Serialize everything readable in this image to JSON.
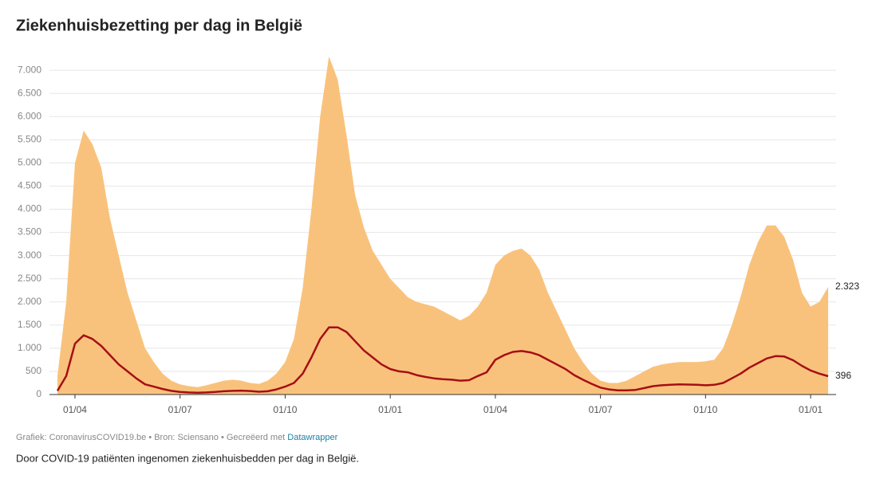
{
  "chart_data": {
    "type": "area",
    "title": "Ziekenhuisbezetting per dag in België",
    "footer": {
      "source": "Grafiek: CoronavirusCOVID19.be • Bron: Sciensano • Gecreëerd met ",
      "link": "Datawrapper"
    },
    "description": "Door COVID-19 patiënten ingenomen ziekenhuisbedden per dag in België.",
    "categories": [
      null,
      null,
      "01/04",
      null,
      null,
      null,
      null,
      null,
      null,
      null,
      null,
      null,
      null,
      null,
      "01/07",
      null,
      null,
      null,
      null,
      null,
      null,
      null,
      null,
      null,
      null,
      null,
      "01/10",
      null,
      null,
      null,
      null,
      null,
      null,
      null,
      null,
      null,
      null,
      null,
      "01/01",
      null,
      null,
      null,
      null,
      null,
      null,
      null,
      null,
      null,
      null,
      null,
      "01/04",
      null,
      null,
      null,
      null,
      null,
      null,
      null,
      null,
      null,
      null,
      null,
      "01/07",
      null,
      null,
      null,
      null,
      null,
      null,
      null,
      null,
      null,
      null,
      null,
      "01/10",
      null,
      null,
      null,
      null,
      null,
      null,
      null,
      null,
      null,
      null,
      null,
      "01/01",
      null,
      null
    ],
    "series": [
      {
        "color": "#f9c27c",
        "values": [
          400,
          2000,
          5000,
          5700,
          5400,
          4900,
          3800,
          3000,
          2200,
          1600,
          1000,
          700,
          450,
          300,
          220,
          180,
          160,
          200,
          250,
          300,
          320,
          300,
          250,
          230,
          300,
          450,
          700,
          1200,
          2300,
          4000,
          6000,
          7300,
          6800,
          5600,
          4300,
          3600,
          3100,
          2800,
          2500,
          2300,
          2100,
          2000,
          1950,
          1900,
          1800,
          1700,
          1600,
          1700,
          1900,
          2200,
          2800,
          3000,
          3100,
          3150,
          3000,
          2700,
          2200,
          1800,
          1400,
          1000,
          700,
          450,
          300,
          250,
          250,
          300,
          400,
          500,
          600,
          650,
          680,
          700,
          700,
          700,
          720,
          750,
          1000,
          1500,
          2100,
          2800,
          3300,
          3650,
          3650,
          3400,
          2900,
          2200,
          1900,
          2000,
          2323
        ],
        "value_labels": [
          null,
          null,
          null,
          null,
          null,
          null,
          null,
          null,
          null,
          null,
          null,
          null,
          null,
          null,
          null,
          null,
          null,
          null,
          null,
          null,
          null,
          null,
          null,
          null,
          null,
          null,
          null,
          null,
          null,
          null,
          null,
          null,
          null,
          null,
          null,
          null,
          null,
          null,
          null,
          null,
          null,
          null,
          null,
          null,
          null,
          null,
          null,
          null,
          null,
          null,
          null,
          null,
          null,
          null,
          null,
          null,
          null,
          null,
          null,
          null,
          null,
          null,
          null,
          null,
          null,
          null,
          null,
          null,
          null,
          null,
          null,
          null,
          null,
          null,
          null,
          null,
          null,
          null,
          null,
          null,
          null,
          null,
          null,
          null,
          null,
          null,
          null,
          null,
          "2.323"
        ]
      },
      {
        "color": "#a50f15",
        "values": [
          80,
          400,
          1100,
          1280,
          1200,
          1050,
          850,
          650,
          500,
          350,
          220,
          170,
          120,
          80,
          55,
          45,
          40,
          45,
          55,
          70,
          80,
          85,
          75,
          60,
          70,
          110,
          170,
          250,
          450,
          800,
          1200,
          1450,
          1450,
          1350,
          1150,
          950,
          800,
          650,
          550,
          500,
          480,
          420,
          380,
          350,
          330,
          320,
          300,
          310,
          400,
          480,
          750,
          850,
          920,
          940,
          910,
          850,
          750,
          650,
          550,
          420,
          320,
          230,
          150,
          110,
          90,
          90,
          100,
          140,
          180,
          200,
          210,
          220,
          215,
          210,
          200,
          210,
          250,
          350,
          450,
          580,
          680,
          780,
          830,
          820,
          740,
          620,
          520,
          450,
          396
        ],
        "value_labels": [
          null,
          null,
          null,
          null,
          null,
          null,
          null,
          null,
          null,
          null,
          null,
          null,
          null,
          null,
          null,
          null,
          null,
          null,
          null,
          null,
          null,
          null,
          null,
          null,
          null,
          null,
          null,
          null,
          null,
          null,
          null,
          null,
          null,
          null,
          null,
          null,
          null,
          null,
          null,
          null,
          null,
          null,
          null,
          null,
          null,
          null,
          null,
          null,
          null,
          null,
          null,
          null,
          null,
          null,
          null,
          null,
          null,
          null,
          null,
          null,
          null,
          null,
          null,
          null,
          null,
          null,
          null,
          null,
          null,
          null,
          null,
          null,
          null,
          null,
          null,
          null,
          null,
          null,
          null,
          null,
          null,
          null,
          null,
          null,
          null,
          null,
          null,
          null,
          "396"
        ]
      }
    ],
    "ylim": [
      0,
      7450
    ],
    "yticks": [
      0,
      500,
      {
        "value": 1000,
        "label": "1.000"
      },
      {
        "value": 1500,
        "label": "1.500"
      },
      {
        "value": 2000,
        "label": "2.000"
      },
      {
        "value": 2500,
        "label": "2.500"
      },
      {
        "value": 3000,
        "label": "3.000"
      },
      {
        "value": 3500,
        "label": "3.500"
      },
      {
        "value": 4000,
        "label": "4.000"
      },
      {
        "value": 4500,
        "label": "4.500"
      },
      {
        "value": 5000,
        "label": "5.000"
      },
      {
        "value": 5500,
        "label": "5.500"
      },
      {
        "value": 6000,
        "label": "6.000"
      },
      {
        "value": 6500,
        "label": "6.500"
      },
      {
        "value": 7000,
        "label": "7.000"
      }
    ],
    "grid": true
  }
}
